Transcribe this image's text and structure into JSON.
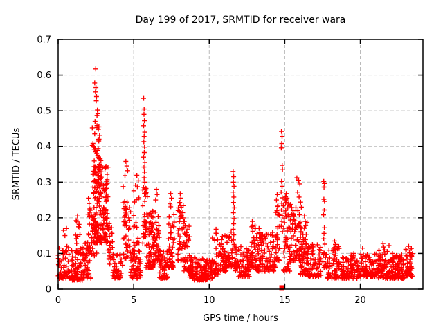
{
  "window": {
    "background": "#ffffff"
  },
  "chart_data": {
    "type": "scatter",
    "title": "Day 199 of 2017, SRMTID for receiver wara",
    "xlabel": "GPS time / hours",
    "ylabel": "SRMTID / TECUs",
    "xlim": [
      0,
      24.145
    ],
    "ylim": [
      0,
      0.7
    ],
    "x_ticks": [
      0,
      5,
      10,
      15,
      20
    ],
    "x_tick_labels": [
      "0",
      "5",
      "10",
      "15",
      "20"
    ],
    "y_ticks": [
      0,
      0.1,
      0.2,
      0.3,
      0.4,
      0.5,
      0.6,
      0.7
    ],
    "y_tick_labels": [
      "0",
      "0.1",
      "0.2",
      "0.3",
      "0.4",
      "0.5",
      "0.6",
      "0.7"
    ],
    "grid": {
      "show": true,
      "color": "#b9b9b9",
      "dash": "5,3"
    },
    "legend": null,
    "marker": {
      "shape": "plus",
      "color": "#ff0000",
      "size": 7,
      "stroke_width": 1.4
    },
    "colors": {
      "marker": "#ff0000",
      "grid": "#b9b9b9",
      "border": "#000000",
      "text": "#000000",
      "background": "#ffffff"
    },
    "seed": 20170199,
    "series_name": "SRMTID",
    "outlier_points": [
      [
        0.35,
        0.165
      ],
      [
        0.55,
        0.17
      ],
      [
        0.45,
        0.15
      ],
      [
        1.28,
        0.205
      ],
      [
        1.22,
        0.19
      ],
      [
        1.35,
        0.175
      ],
      [
        2.0,
        0.255
      ],
      [
        2.05,
        0.24
      ],
      [
        2.1,
        0.225
      ],
      [
        1.98,
        0.21
      ],
      [
        2.49,
        0.617
      ],
      [
        2.42,
        0.578
      ],
      [
        2.5,
        0.565
      ],
      [
        2.47,
        0.553
      ],
      [
        2.54,
        0.54
      ],
      [
        2.52,
        0.528
      ],
      [
        2.6,
        0.502
      ],
      [
        2.63,
        0.492
      ],
      [
        2.57,
        0.487
      ],
      [
        2.44,
        0.47
      ],
      [
        2.7,
        0.455
      ],
      [
        2.66,
        0.448
      ],
      [
        2.42,
        0.435
      ],
      [
        2.74,
        0.43
      ],
      [
        2.71,
        0.42
      ],
      [
        2.35,
        0.4
      ],
      [
        2.39,
        0.392
      ],
      [
        2.45,
        0.385
      ],
      [
        2.55,
        0.38
      ],
      [
        2.62,
        0.375
      ],
      [
        2.68,
        0.37
      ],
      [
        2.78,
        0.365
      ],
      [
        2.83,
        0.36
      ],
      [
        4.48,
        0.358
      ],
      [
        4.55,
        0.345
      ],
      [
        4.6,
        0.332
      ],
      [
        4.42,
        0.318
      ],
      [
        5.66,
        0.535
      ],
      [
        5.69,
        0.505
      ],
      [
        5.68,
        0.49
      ],
      [
        5.71,
        0.472
      ],
      [
        5.66,
        0.458
      ],
      [
        5.73,
        0.44
      ],
      [
        5.69,
        0.428
      ],
      [
        5.67,
        0.413
      ],
      [
        5.72,
        0.398
      ],
      [
        5.7,
        0.383
      ],
      [
        5.66,
        0.37
      ],
      [
        5.74,
        0.355
      ],
      [
        5.68,
        0.342
      ],
      [
        5.71,
        0.328
      ],
      [
        5.69,
        0.312
      ],
      [
        5.73,
        0.3
      ],
      [
        6.5,
        0.28
      ],
      [
        6.55,
        0.265
      ],
      [
        6.45,
        0.25
      ],
      [
        7.45,
        0.268
      ],
      [
        7.5,
        0.255
      ],
      [
        7.4,
        0.24
      ],
      [
        8.08,
        0.268
      ],
      [
        8.12,
        0.255
      ],
      [
        8.05,
        0.243
      ],
      [
        8.15,
        0.23
      ],
      [
        8.1,
        0.215
      ],
      [
        8.35,
        0.19
      ],
      [
        8.4,
        0.178
      ],
      [
        10.45,
        0.168
      ],
      [
        10.5,
        0.155
      ],
      [
        11.58,
        0.33
      ],
      [
        11.62,
        0.315
      ],
      [
        11.6,
        0.3
      ],
      [
        11.64,
        0.288
      ],
      [
        11.59,
        0.272
      ],
      [
        11.63,
        0.258
      ],
      [
        11.61,
        0.243
      ],
      [
        11.65,
        0.228
      ],
      [
        11.6,
        0.214
      ],
      [
        11.64,
        0.198
      ],
      [
        11.62,
        0.183
      ],
      [
        11.59,
        0.168
      ],
      [
        11.63,
        0.152
      ],
      [
        11.61,
        0.138
      ],
      [
        11.64,
        0.125
      ],
      [
        12.85,
        0.19
      ],
      [
        12.82,
        0.175
      ],
      [
        12.88,
        0.162
      ],
      [
        13.3,
        0.17
      ],
      [
        13.35,
        0.158
      ],
      [
        14.5,
        0.265
      ],
      [
        14.45,
        0.25
      ],
      [
        14.55,
        0.235
      ],
      [
        14.48,
        0.22
      ],
      [
        14.78,
        0.442
      ],
      [
        14.82,
        0.428
      ],
      [
        14.8,
        0.408
      ],
      [
        14.77,
        0.396
      ],
      [
        14.83,
        0.347
      ],
      [
        14.85,
        0.336
      ],
      [
        14.79,
        0.302
      ],
      [
        14.82,
        0.288
      ],
      [
        14.76,
        0.272
      ],
      [
        14.84,
        0.256
      ],
      [
        14.8,
        0.241
      ],
      [
        14.78,
        0.222
      ],
      [
        14.83,
        0.206
      ],
      [
        14.81,
        0.19
      ],
      [
        14.77,
        0.176
      ],
      [
        14.85,
        0.161
      ],
      [
        15.1,
        0.268
      ],
      [
        15.15,
        0.255
      ],
      [
        15.05,
        0.242
      ],
      [
        15.2,
        0.228
      ],
      [
        15.55,
        0.22
      ],
      [
        15.6,
        0.208
      ],
      [
        15.8,
        0.312
      ],
      [
        15.92,
        0.305
      ],
      [
        16.0,
        0.295
      ],
      [
        15.85,
        0.272
      ],
      [
        15.95,
        0.258
      ],
      [
        16.05,
        0.244
      ],
      [
        16.1,
        0.23
      ],
      [
        16.3,
        0.205
      ],
      [
        16.35,
        0.19
      ],
      [
        17.58,
        0.302
      ],
      [
        17.62,
        0.296
      ],
      [
        17.6,
        0.286
      ],
      [
        17.59,
        0.252
      ],
      [
        17.63,
        0.246
      ],
      [
        17.61,
        0.222
      ],
      [
        17.57,
        0.208
      ],
      [
        17.62,
        0.172
      ],
      [
        17.6,
        0.156
      ],
      [
        17.58,
        0.141
      ],
      [
        18.3,
        0.135
      ],
      [
        18.35,
        0.125
      ],
      [
        20.15,
        0.115
      ],
      [
        21.5,
        0.128
      ],
      [
        21.55,
        0.118
      ],
      [
        21.9,
        0.122
      ],
      [
        23.2,
        0.12
      ],
      [
        23.3,
        0.11
      ],
      [
        23.35,
        0.095
      ]
    ],
    "special_points": [
      {
        "x": 14.8,
        "y": 0.004,
        "marker": "filled-square",
        "size": 7
      }
    ],
    "clusters": [
      [
        0.0,
        0.8,
        55,
        0.03,
        0.12,
        2.0
      ],
      [
        0.8,
        1.6,
        70,
        0.025,
        0.12,
        2.0
      ],
      [
        1.15,
        1.45,
        16,
        0.1,
        0.2,
        1.5
      ],
      [
        1.6,
        2.2,
        55,
        0.03,
        0.13,
        1.8
      ],
      [
        1.95,
        2.15,
        12,
        0.1,
        0.24,
        1.3
      ],
      [
        2.25,
        2.75,
        26,
        0.3,
        0.46,
        1.2
      ],
      [
        2.3,
        3.3,
        165,
        0.13,
        0.35,
        1.6
      ],
      [
        2.2,
        2.55,
        25,
        0.09,
        0.22,
        1.5
      ],
      [
        3.3,
        3.6,
        30,
        0.07,
        0.19,
        1.8
      ],
      [
        3.6,
        4.3,
        50,
        0.03,
        0.1,
        1.8
      ],
      [
        4.3,
        4.8,
        45,
        0.08,
        0.3,
        2.0
      ],
      [
        4.8,
        5.45,
        60,
        0.03,
        0.13,
        1.6
      ],
      [
        5.0,
        5.35,
        20,
        0.13,
        0.33,
        1.6
      ],
      [
        5.6,
        5.9,
        35,
        0.12,
        0.3,
        1.3
      ],
      [
        5.8,
        6.4,
        80,
        0.06,
        0.22,
        1.8
      ],
      [
        6.4,
        6.7,
        30,
        0.08,
        0.26,
        1.8
      ],
      [
        6.7,
        7.3,
        60,
        0.03,
        0.11,
        1.7
      ],
      [
        7.3,
        7.7,
        45,
        0.06,
        0.25,
        2.0
      ],
      [
        7.9,
        8.3,
        40,
        0.08,
        0.25,
        1.8
      ],
      [
        8.3,
        8.7,
        40,
        0.05,
        0.18,
        1.8
      ],
      [
        8.7,
        10.2,
        150,
        0.025,
        0.09,
        1.6
      ],
      [
        10.2,
        10.7,
        40,
        0.04,
        0.16,
        1.8
      ],
      [
        10.7,
        11.2,
        55,
        0.05,
        0.15,
        1.8
      ],
      [
        11.2,
        11.55,
        25,
        0.06,
        0.16,
        1.5
      ],
      [
        11.55,
        11.9,
        25,
        0.05,
        0.13,
        1.5
      ],
      [
        11.9,
        12.7,
        70,
        0.035,
        0.12,
        1.7
      ],
      [
        12.7,
        13.1,
        35,
        0.06,
        0.18,
        1.6
      ],
      [
        13.1,
        13.6,
        50,
        0.05,
        0.16,
        1.7
      ],
      [
        13.6,
        14.4,
        60,
        0.05,
        0.16,
        1.6
      ],
      [
        14.4,
        14.7,
        28,
        0.08,
        0.24,
        1.5
      ],
      [
        14.9,
        15.4,
        55,
        0.05,
        0.26,
        2.2
      ],
      [
        15.4,
        16.0,
        55,
        0.08,
        0.23,
        1.8
      ],
      [
        16.0,
        16.5,
        70,
        0.04,
        0.19,
        2.0
      ],
      [
        16.5,
        17.4,
        70,
        0.035,
        0.13,
        1.7
      ],
      [
        17.5,
        17.8,
        15,
        0.06,
        0.13,
        1.5
      ],
      [
        17.8,
        18.6,
        70,
        0.03,
        0.12,
        1.8
      ],
      [
        18.6,
        19.8,
        90,
        0.03,
        0.1,
        1.8
      ],
      [
        19.8,
        21.2,
        110,
        0.035,
        0.1,
        1.8
      ],
      [
        21.2,
        22.0,
        70,
        0.03,
        0.11,
        1.8
      ],
      [
        22.0,
        23.0,
        90,
        0.03,
        0.1,
        1.7
      ],
      [
        23.0,
        23.45,
        45,
        0.035,
        0.115,
        1.6
      ]
    ]
  }
}
